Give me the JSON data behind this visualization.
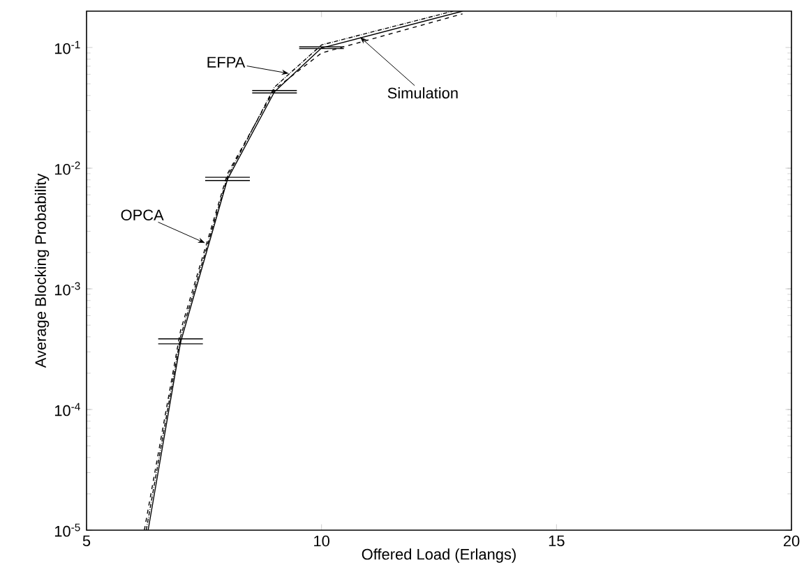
{
  "chart_data": {
    "type": "line",
    "xlabel": "Offered Load (Erlangs)",
    "ylabel": "Average Blocking Probability",
    "log": "y",
    "xlim": [
      5,
      20
    ],
    "ylim": [
      1e-05,
      0.2
    ],
    "xticks": [
      5,
      10,
      15,
      20
    ],
    "yticks": [
      {
        "value": 1e-05,
        "label": "10$^{-5}$"
      },
      {
        "value": 0.0001,
        "label": "10$^{-4}$"
      },
      {
        "value": 0.001,
        "label": "10$^{-3}$"
      },
      {
        "value": 0.01,
        "label": "10$^{-2}$"
      },
      {
        "value": 0.1,
        "label": "10$^{-1}$"
      }
    ],
    "grid": false,
    "marker": "none",
    "series": [
      {
        "color": "#000000",
        "line_style": "solid",
        "x": [
          6.31,
          7,
          8,
          9,
          10,
          13
        ],
        "values": [
          1e-05,
          0.00036,
          0.0081,
          0.043,
          0.099,
          0.2
        ],
        "errors": [
          null,
          [
            0.00035,
            0.000385
          ],
          [
            0.0079,
            0.0084
          ],
          [
            0.042,
            0.044
          ],
          [
            0.098,
            0.101
          ],
          null
        ]
      },
      {
        "color": "#000000",
        "line_style": "dashed",
        "x": [
          6.23,
          7,
          8,
          9,
          10,
          13
        ],
        "values": [
          1e-05,
          0.00045,
          0.009,
          0.045,
          0.09,
          0.19
        ]
      },
      {
        "color": "#000000",
        "line_style": "dotted",
        "x": [
          6.27,
          7,
          8,
          9,
          10,
          12.8
        ],
        "values": [
          1e-05,
          0.0004,
          0.0085,
          0.047,
          0.105,
          0.2
        ]
      }
    ],
    "annotations": [
      {
        "text": "EFPA",
        "x": 9.3,
        "y": 0.061
      },
      {
        "text": "OPCA",
        "x": 7.52,
        "y": 0.0024
      },
      {
        "text": "Simulation",
        "x": 10.82,
        "y": 0.122
      }
    ]
  }
}
